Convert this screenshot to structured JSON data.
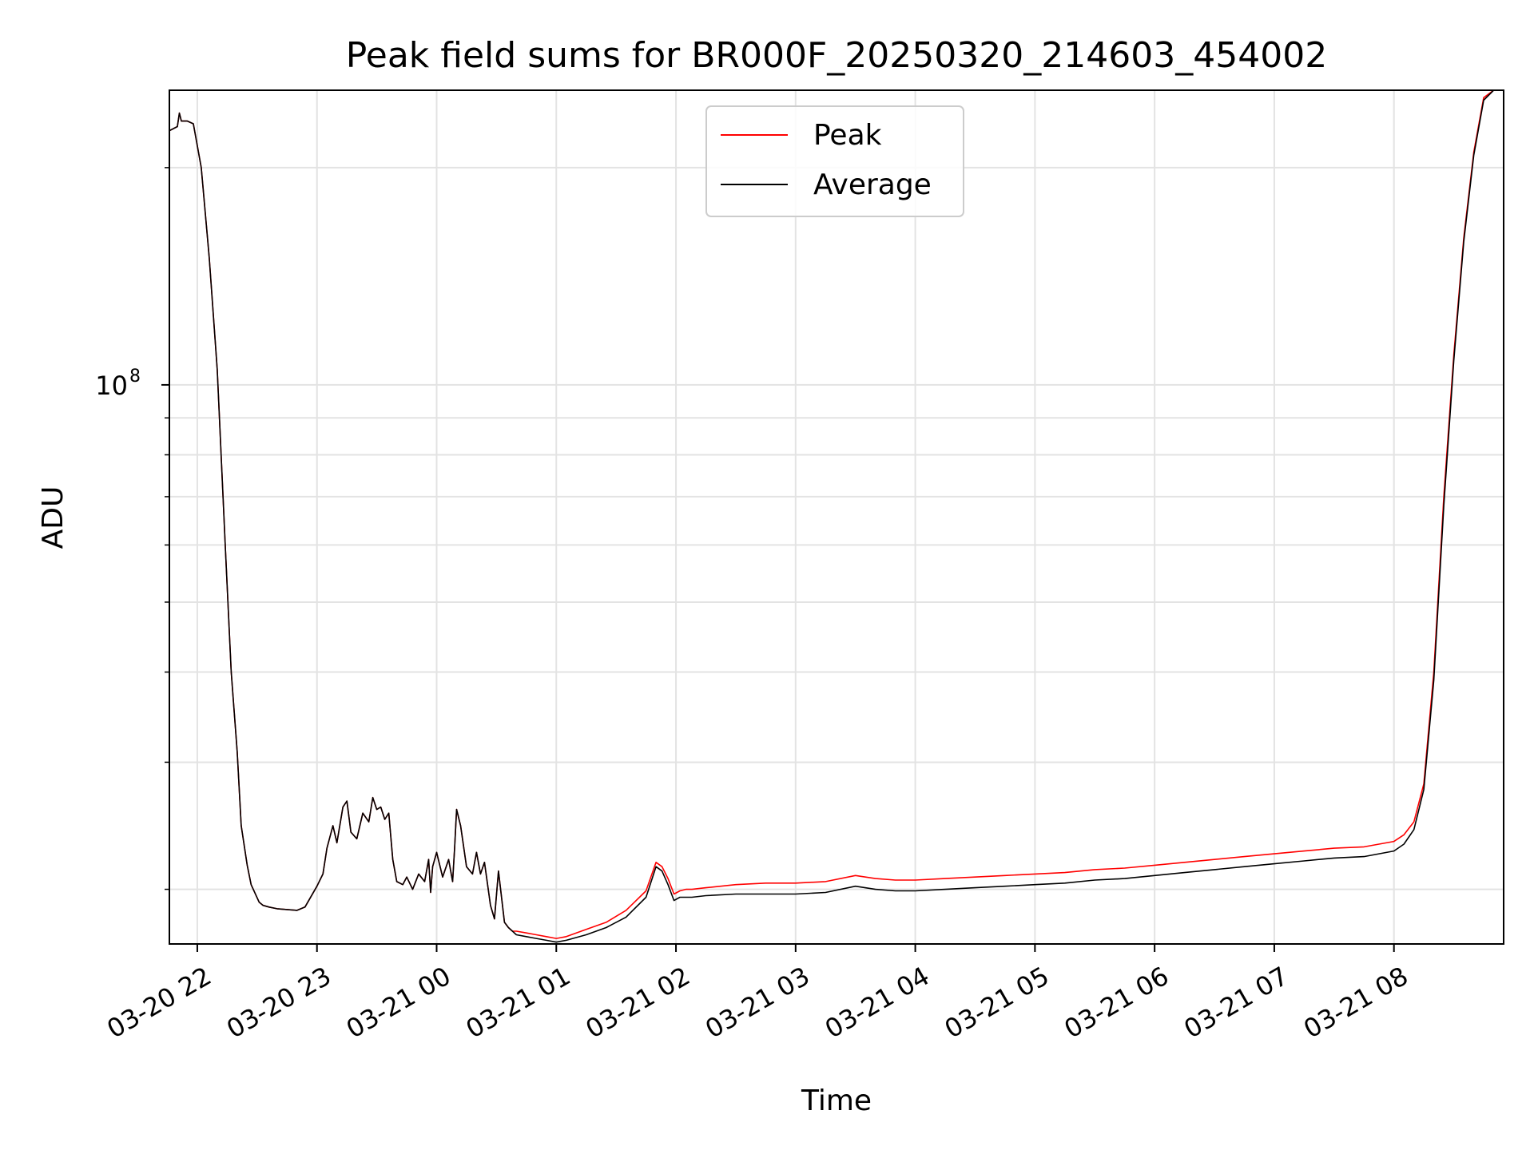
{
  "chart_data": {
    "type": "line",
    "title": "Peak field sums for BR000F_20250320_214603_454002",
    "xlabel": "Time",
    "ylabel": "ADU",
    "y_scale": "log",
    "ylim": [
      16800000,
      256000000
    ],
    "xlim": [
      "03-20 21:46",
      "03-21 08:55"
    ],
    "grid": true,
    "legend_position": "upper center",
    "x_tick_labels": [
      "03-20 22",
      "03-20 23",
      "03-21 00",
      "03-21 01",
      "03-21 02",
      "03-21 03",
      "03-21 04",
      "03-21 05",
      "03-21 06",
      "03-21 07",
      "03-21 08"
    ],
    "y_tick_labels": [
      {
        "base": "10",
        "exponent": "8"
      }
    ],
    "series": [
      {
        "name": "Peak",
        "color": "#ff0000",
        "x": [
          "03-20 21:46",
          "03-20 21:50",
          "03-20 21:51",
          "03-20 21:52",
          "03-20 21:55",
          "03-20 21:58",
          "03-20 22:02",
          "03-20 22:06",
          "03-20 22:10",
          "03-20 22:14",
          "03-20 22:17",
          "03-20 22:20",
          "03-20 22:22",
          "03-20 22:25",
          "03-20 22:27",
          "03-20 22:31",
          "03-20 22:33",
          "03-20 22:36",
          "03-20 22:40",
          "03-20 22:50",
          "03-20 22:54",
          "03-20 23:00",
          "03-20 23:03",
          "03-20 23:05",
          "03-20 23:08",
          "03-20 23:10",
          "03-20 23:13",
          "03-20 23:15",
          "03-20 23:17",
          "03-20 23:20",
          "03-20 23:23",
          "03-20 23:26",
          "03-20 23:28",
          "03-20 23:30",
          "03-20 23:32",
          "03-20 23:34",
          "03-20 23:36",
          "03-20 23:38",
          "03-20 23:40",
          "03-20 23:43",
          "03-20 23:45",
          "03-20 23:48",
          "03-20 23:51",
          "03-20 23:54",
          "03-20 23:56",
          "03-20 23:57",
          "03-20 23:58",
          "03-21 00:00",
          "03-21 00:03",
          "03-21 00:06",
          "03-21 00:08",
          "03-21 00:09",
          "03-21 00:10",
          "03-21 00:12",
          "03-21 00:15",
          "03-21 00:18",
          "03-21 00:20",
          "03-21 00:22",
          "03-21 00:24",
          "03-21 00:27",
          "03-21 00:29",
          "03-21 00:31",
          "03-21 00:34",
          "03-21 00:36",
          "03-21 00:38",
          "03-21 00:40",
          "03-21 00:45",
          "03-21 00:50",
          "03-21 00:55",
          "03-21 01:00",
          "03-21 01:05",
          "03-21 01:15",
          "03-21 01:25",
          "03-21 01:35",
          "03-21 01:45",
          "03-21 01:50",
          "03-21 01:53",
          "03-21 01:56",
          "03-21 01:59",
          "03-21 02:02",
          "03-21 02:05",
          "03-21 02:08",
          "03-21 02:15",
          "03-21 02:30",
          "03-21 02:45",
          "03-21 03:00",
          "03-21 03:15",
          "03-21 03:30",
          "03-21 03:40",
          "03-21 03:50",
          "03-21 04:00",
          "03-21 04:15",
          "03-21 04:30",
          "03-21 04:45",
          "03-21 05:00",
          "03-21 05:15",
          "03-21 05:30",
          "03-21 05:45",
          "03-21 06:00",
          "03-21 06:15",
          "03-21 06:30",
          "03-21 06:45",
          "03-21 07:00",
          "03-21 07:15",
          "03-21 07:30",
          "03-21 07:45",
          "03-21 08:00",
          "03-21 08:05",
          "03-21 08:10",
          "03-21 08:15",
          "03-21 08:20",
          "03-21 08:25",
          "03-21 08:30",
          "03-21 08:35",
          "03-21 08:40",
          "03-21 08:45",
          "03-21 08:50",
          "03-21 08:55"
        ],
        "y": [
          225000000,
          228000000,
          238000000,
          232000000,
          232000000,
          230000000,
          200000000,
          150000000,
          105000000,
          60000000,
          40000000,
          31000000,
          24500000,
          21600000,
          20300000,
          19200000,
          19000000,
          18900000,
          18800000,
          18700000,
          18900000,
          20200000,
          21000000,
          22800000,
          24500000,
          23200000,
          26000000,
          26500000,
          24000000,
          23500000,
          25500000,
          24800000,
          26800000,
          25800000,
          26000000,
          25000000,
          25500000,
          22000000,
          20500000,
          20300000,
          20800000,
          20000000,
          21000000,
          20500000,
          22000000,
          19800000,
          21500000,
          22500000,
          20800000,
          22000000,
          20500000,
          22800000,
          25800000,
          24500000,
          21500000,
          21000000,
          22500000,
          21000000,
          21800000,
          19000000,
          18200000,
          21200000,
          18000000,
          17700000,
          17500000,
          17500000,
          17400000,
          17300000,
          17200000,
          17100000,
          17200000,
          17600000,
          18000000,
          18700000,
          19900000,
          21800000,
          21500000,
          20700000,
          19700000,
          19900000,
          20000000,
          20000000,
          20100000,
          20300000,
          20400000,
          20400000,
          20500000,
          20900000,
          20700000,
          20600000,
          20600000,
          20700000,
          20800000,
          20900000,
          21000000,
          21100000,
          21300000,
          21400000,
          21600000,
          21800000,
          22000000,
          22200000,
          22400000,
          22600000,
          22800000,
          22900000,
          23300000,
          23800000,
          24800000,
          28000000,
          40000000,
          70000000,
          110000000,
          160000000,
          210000000,
          250000000,
          256000000,
          256000000
        ]
      },
      {
        "name": "Average",
        "color": "#000000",
        "x": [
          "03-20 21:46",
          "03-20 21:50",
          "03-20 21:51",
          "03-20 21:52",
          "03-20 21:55",
          "03-20 21:58",
          "03-20 22:02",
          "03-20 22:06",
          "03-20 22:10",
          "03-20 22:14",
          "03-20 22:17",
          "03-20 22:20",
          "03-20 22:22",
          "03-20 22:25",
          "03-20 22:27",
          "03-20 22:31",
          "03-20 22:33",
          "03-20 22:36",
          "03-20 22:40",
          "03-20 22:50",
          "03-20 22:54",
          "03-20 23:00",
          "03-20 23:03",
          "03-20 23:05",
          "03-20 23:08",
          "03-20 23:10",
          "03-20 23:13",
          "03-20 23:15",
          "03-20 23:17",
          "03-20 23:20",
          "03-20 23:23",
          "03-20 23:26",
          "03-20 23:28",
          "03-20 23:30",
          "03-20 23:32",
          "03-20 23:34",
          "03-20 23:36",
          "03-20 23:38",
          "03-20 23:40",
          "03-20 23:43",
          "03-20 23:45",
          "03-20 23:48",
          "03-20 23:51",
          "03-20 23:54",
          "03-20 23:56",
          "03-20 23:57",
          "03-20 23:58",
          "03-21 00:00",
          "03-21 00:03",
          "03-21 00:06",
          "03-21 00:08",
          "03-21 00:09",
          "03-21 00:10",
          "03-21 00:12",
          "03-21 00:15",
          "03-21 00:18",
          "03-21 00:20",
          "03-21 00:22",
          "03-21 00:24",
          "03-21 00:27",
          "03-21 00:29",
          "03-21 00:31",
          "03-21 00:34",
          "03-21 00:36",
          "03-21 00:38",
          "03-21 00:40",
          "03-21 00:45",
          "03-21 00:50",
          "03-21 00:55",
          "03-21 01:00",
          "03-21 01:05",
          "03-21 01:15",
          "03-21 01:25",
          "03-21 01:35",
          "03-21 01:45",
          "03-21 01:50",
          "03-21 01:53",
          "03-21 01:56",
          "03-21 01:59",
          "03-21 02:02",
          "03-21 02:05",
          "03-21 02:08",
          "03-21 02:15",
          "03-21 02:30",
          "03-21 02:45",
          "03-21 03:00",
          "03-21 03:15",
          "03-21 03:30",
          "03-21 03:40",
          "03-21 03:50",
          "03-21 04:00",
          "03-21 04:15",
          "03-21 04:30",
          "03-21 04:45",
          "03-21 05:00",
          "03-21 05:15",
          "03-21 05:30",
          "03-21 05:45",
          "03-21 06:00",
          "03-21 06:15",
          "03-21 06:30",
          "03-21 06:45",
          "03-21 07:00",
          "03-21 07:15",
          "03-21 07:30",
          "03-21 07:45",
          "03-21 08:00",
          "03-21 08:05",
          "03-21 08:10",
          "03-21 08:15",
          "03-21 08:20",
          "03-21 08:25",
          "03-21 08:30",
          "03-21 08:35",
          "03-21 08:40",
          "03-21 08:45",
          "03-21 08:50",
          "03-21 08:55"
        ],
        "y": [
          225000000,
          228000000,
          238000000,
          232000000,
          232000000,
          230000000,
          200000000,
          150000000,
          105000000,
          60000000,
          40000000,
          31000000,
          24500000,
          21600000,
          20300000,
          19200000,
          19000000,
          18900000,
          18800000,
          18700000,
          18900000,
          20200000,
          21000000,
          22800000,
          24500000,
          23200000,
          26000000,
          26500000,
          24000000,
          23500000,
          25500000,
          24800000,
          26800000,
          25800000,
          26000000,
          25000000,
          25500000,
          22000000,
          20500000,
          20300000,
          20800000,
          20000000,
          21000000,
          20500000,
          22000000,
          19800000,
          21500000,
          22500000,
          20800000,
          22000000,
          20500000,
          22800000,
          25800000,
          24500000,
          21500000,
          21000000,
          22500000,
          21000000,
          21800000,
          19000000,
          18200000,
          21200000,
          18000000,
          17700000,
          17500000,
          17300000,
          17200000,
          17100000,
          17000000,
          16900000,
          17000000,
          17300000,
          17700000,
          18300000,
          19500000,
          21500000,
          21200000,
          20300000,
          19300000,
          19500000,
          19500000,
          19500000,
          19600000,
          19700000,
          19700000,
          19700000,
          19800000,
          20200000,
          20000000,
          19900000,
          19900000,
          20000000,
          20100000,
          20200000,
          20300000,
          20400000,
          20600000,
          20700000,
          20900000,
          21100000,
          21300000,
          21500000,
          21700000,
          21900000,
          22100000,
          22200000,
          22600000,
          23100000,
          24200000,
          27500000,
          39000000,
          68000000,
          108000000,
          158000000,
          208000000,
          248000000,
          256000000,
          256000000
        ]
      }
    ]
  }
}
